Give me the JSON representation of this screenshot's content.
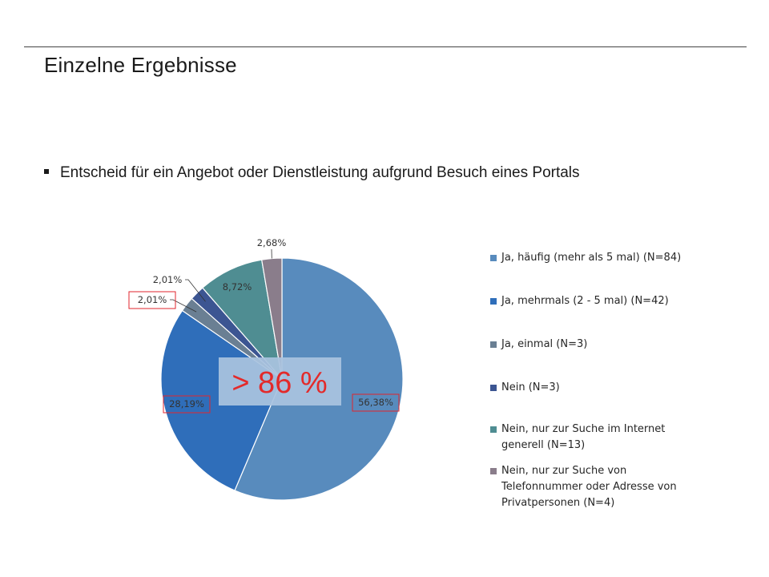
{
  "slide": {
    "title": "Einzelne Ergebnisse",
    "bullet": "Entscheid für ein Angebot oder Dienstleistung aufgrund Besuch eines Portals"
  },
  "chart_data": {
    "type": "pie",
    "title": "",
    "series": [
      {
        "labels": [
          "Ja, häufig (mehr als 5 mal) (N=84)",
          "Ja, mehrmals (2 - 5 mal) (N=42)",
          "Ja, einmal (N=3)",
          "Nein (N=3)",
          "Nein, nur zur Suche im Internet generell (N=13)",
          "Nein, nur zur Suche von Telefonnummer oder Adresse von Privatpersonen (N=4)"
        ],
        "values": [
          56.38,
          28.19,
          2.01,
          2.01,
          8.72,
          2.68
        ],
        "data_labels": [
          "56,38%",
          "28,19%",
          "2,01%",
          "2,01%",
          "8,72%",
          "2,68%"
        ],
        "colors": [
          "#588bbd",
          "#2f6eba",
          "#6a7f93",
          "#3c5592",
          "#4f8d92",
          "#8a7d8b"
        ]
      }
    ],
    "legend_position": "right",
    "highlighted_labels": [
      "56,38%",
      "28,19%",
      "2,01%"
    ],
    "annotation": {
      "text": "> 86 %",
      "color": "#e32a2a",
      "background": "#a9c3df"
    }
  }
}
